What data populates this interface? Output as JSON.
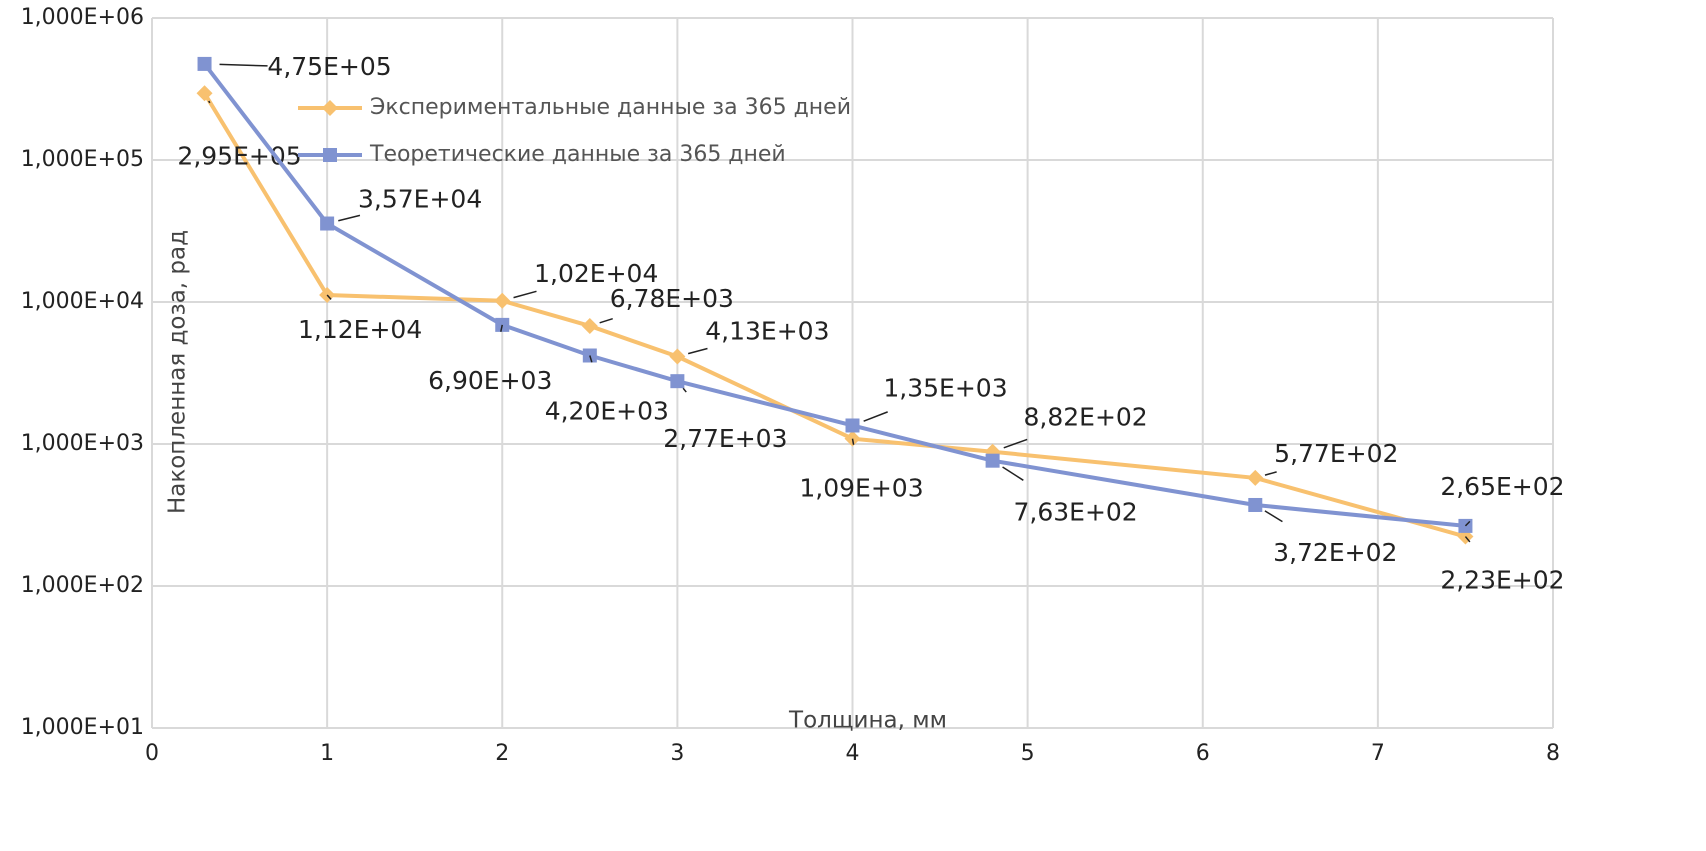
{
  "chart_data": {
    "type": "line",
    "log_y": true,
    "grid": true,
    "x_label": "Толщина, мм",
    "y_label": "Накопленная доза, рад",
    "xlim": [
      0,
      8
    ],
    "xticks": [
      0,
      1,
      2,
      3,
      4,
      5,
      6,
      7,
      8
    ],
    "ylim": [
      10,
      1000000
    ],
    "yticks": [
      {
        "value": 10,
        "label": "1,000E+01"
      },
      {
        "value": 100,
        "label": "1,000E+02"
      },
      {
        "value": 1000,
        "label": "1,000E+03"
      },
      {
        "value": 10000,
        "label": "1,000E+04"
      },
      {
        "value": 100000,
        "label": "1,000E+05"
      },
      {
        "value": 1000000,
        "label": "1,000E+06"
      }
    ],
    "legend": "upper-left",
    "series": [
      {
        "name": "Экспериментальные данные за 365 дней",
        "color": "#f8c16f",
        "marker": "diamond",
        "x": [
          0.3,
          1,
          2,
          2.5,
          3,
          4,
          4.8,
          6.3,
          7.5
        ],
        "values": [
          295000,
          11200,
          10200,
          6780,
          4130,
          1090,
          882,
          577,
          223
        ],
        "value_labels": [
          "2,95E+05",
          "1,12E+04",
          "1,02E+04",
          "6,78E+03",
          "4,13E+03",
          "1,09E+03",
          "8,82E+02",
          "5,77E+02",
          "2,23E+02"
        ]
      },
      {
        "name": "Теоретические данные за 365 дней",
        "color": "#8093d1",
        "marker": "square",
        "x": [
          0.3,
          1,
          2,
          2.5,
          3,
          4,
          4.8,
          6.3,
          7.5
        ],
        "values": [
          475000,
          35700,
          6900,
          4200,
          2770,
          1350,
          763,
          372,
          265
        ],
        "value_labels": [
          "4,75E+05",
          "3,57E+04",
          "6,90E+03",
          "4,20E+03",
          "2,77E+03",
          "1,35E+03",
          "7,63E+02",
          "3,72E+02",
          "2,65E+02"
        ]
      }
    ]
  }
}
